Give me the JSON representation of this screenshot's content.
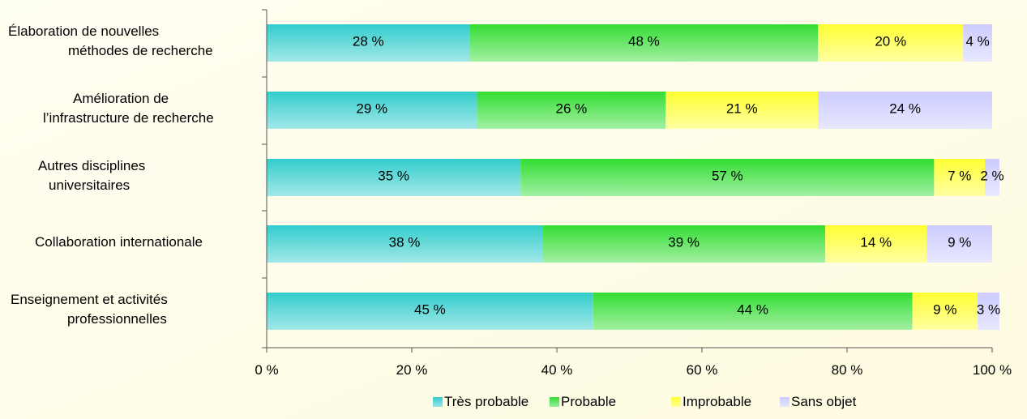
{
  "chart_data": {
    "type": "bar",
    "orientation": "horizontal",
    "stacked": true,
    "categories": [
      [
        "Élaboration de nouvelles",
        "méthodes de recherche"
      ],
      [
        "Amélioration de",
        "l’infrastructure de recherche"
      ],
      [
        "Autres disciplines",
        "universitaires"
      ],
      [
        "Collaboration internationale"
      ],
      [
        "Enseignement et activités",
        "professionnelles"
      ]
    ],
    "series": [
      {
        "name": "Très probable",
        "color": "#33cccc",
        "values": [
          28,
          29,
          35,
          38,
          45
        ],
        "labels": [
          "28 %",
          "29 %",
          "35 %",
          "38 %",
          "45 %"
        ]
      },
      {
        "name": "Probable",
        "color": "#33dd33",
        "values": [
          48,
          26,
          57,
          39,
          44
        ],
        "labels": [
          "48 %",
          "26 %",
          "57 %",
          "39 %",
          "44 %"
        ]
      },
      {
        "name": "Improbable",
        "color": "#ffff33",
        "values": [
          20,
          21,
          7,
          14,
          9
        ],
        "labels": [
          "20 %",
          "21 %",
          "7 %",
          "14 %",
          "9 %"
        ]
      },
      {
        "name": "Sans objet",
        "color": "#ccccff",
        "values": [
          4,
          24,
          2,
          9,
          3
        ],
        "labels": [
          "4 %",
          "24 %",
          "2 %",
          "9 %",
          "3 %"
        ]
      }
    ],
    "xlim": [
      0,
      100
    ],
    "x_ticks": [
      0,
      20,
      40,
      60,
      80,
      100
    ],
    "x_tick_labels": [
      "0 %",
      "20 %",
      "40 %",
      "60 %",
      "80 %",
      "100 %"
    ],
    "legend_position": "bottom",
    "grid": false,
    "background": "#fffbe0"
  }
}
